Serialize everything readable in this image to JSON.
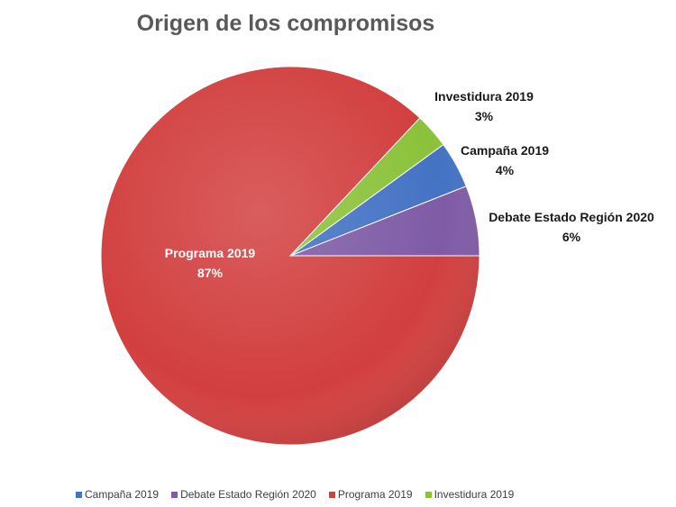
{
  "chart_data": {
    "type": "pie",
    "title": "Origen de los compromisos",
    "categories": [
      "Campaña 2019",
      "Debate Estado Región 2020",
      "Programa 2019",
      "Investidura 2019"
    ],
    "values": [
      4,
      6,
      87,
      3
    ],
    "value_labels": [
      "4%",
      "6%",
      "87%",
      "3%"
    ],
    "colors": [
      "#4472C4",
      "#7F5BA6",
      "#D23F3F",
      "#8BC23A"
    ],
    "legend": {
      "position": "bottom",
      "entries": [
        "Campaña 2019",
        "Debate Estado Región 2020",
        "Programa 2019",
        "Investidura 2019"
      ]
    }
  }
}
